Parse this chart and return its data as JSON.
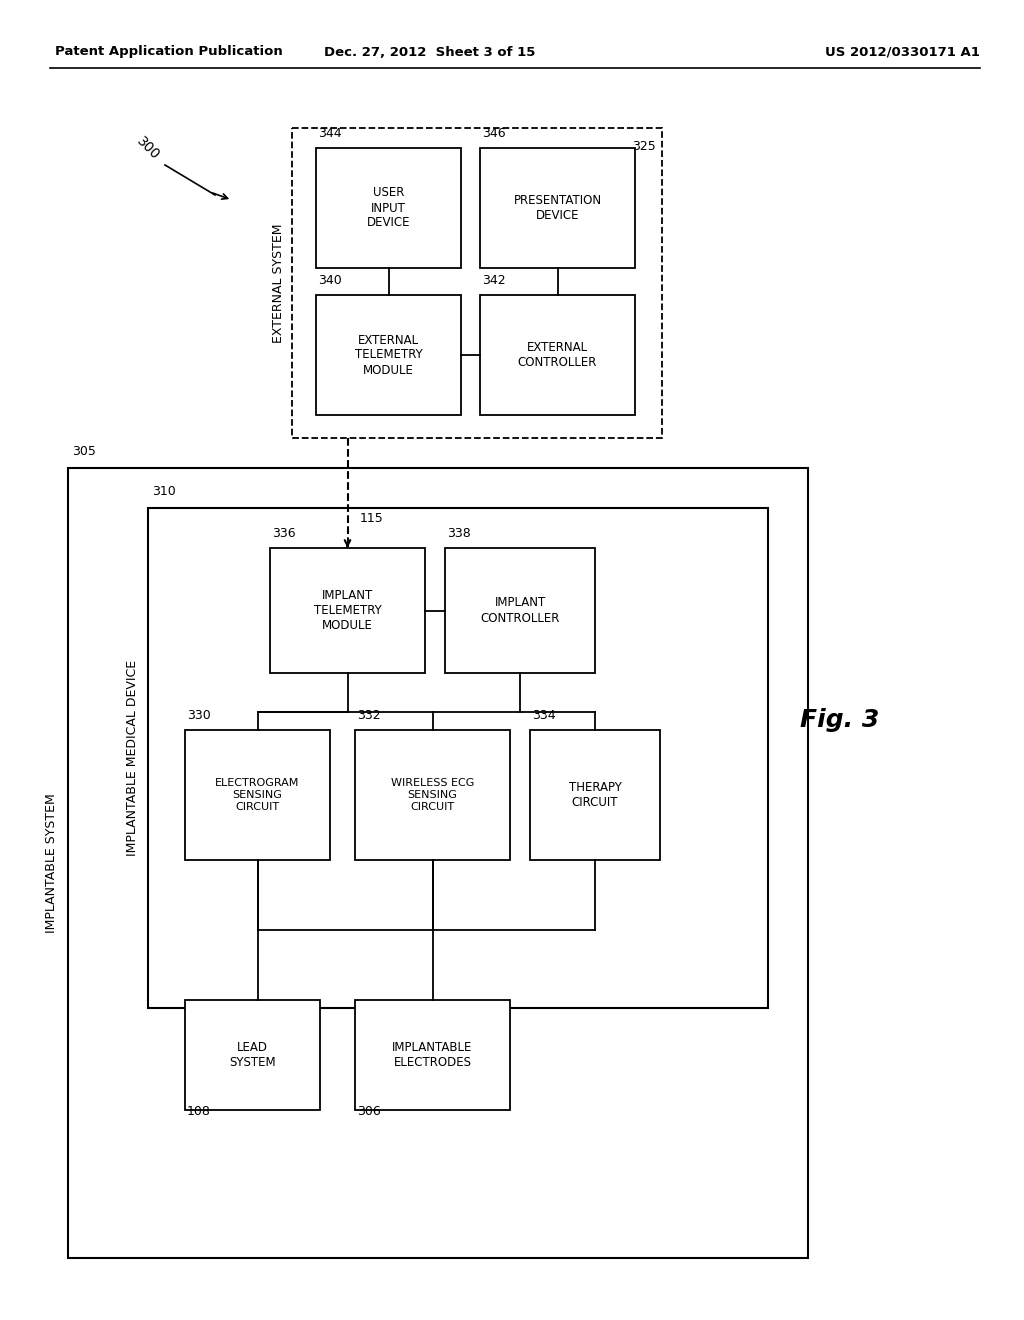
{
  "fig_width": 10.24,
  "fig_height": 13.2,
  "dpi": 100,
  "bg_color": "#ffffff",
  "header_left": "Patent Application Publication",
  "header_center": "Dec. 27, 2012  Sheet 3 of 15",
  "header_right": "US 2012/0330171 A1",
  "fig_caption": "Fig. 3",
  "label_300": "300",
  "label_305": "305",
  "label_310": "310",
  "label_325": "325",
  "label_340": "340",
  "label_342": "342",
  "label_344": "344",
  "label_346": "346",
  "label_336": "336",
  "label_338": "338",
  "label_330": "330",
  "label_332": "332",
  "label_334": "334",
  "label_108": "108",
  "label_306": "306",
  "label_115": "115",
  "ext_system_label": "EXTERNAL SYSTEM",
  "imp_system_label": "IMPLANTABLE SYSTEM",
  "imp_device_label": "IMPLANTABLE MEDICAL DEVICE",
  "user_input_label": "USER\nINPUT\nDEVICE",
  "presentation_label": "PRESENTATION\nDEVICE",
  "ext_telemetry_label": "EXTERNAL\nTELEMETRY\nMODULE",
  "ext_controller_label": "EXTERNAL\nCONTROLLER",
  "imp_telemetry_label": "IMPLANT\nTELEMETRY\nMODULE",
  "imp_controller_label": "IMPLANT\nCONTROLLER",
  "electrogram_label": "ELECTROGRAM\nSENSING\nCIRCUIT",
  "wireless_ecg_label": "WIRELESS ECG\nSENSING\nCIRCUIT",
  "therapy_label": "THERAPY\nCIRCUIT",
  "lead_label": "LEAD\nSYSTEM",
  "electrodes_label": "IMPLANTABLE\nELECTRODES",
  "line_color": "#000000",
  "box_edge_color": "#000000",
  "text_color": "#000000"
}
